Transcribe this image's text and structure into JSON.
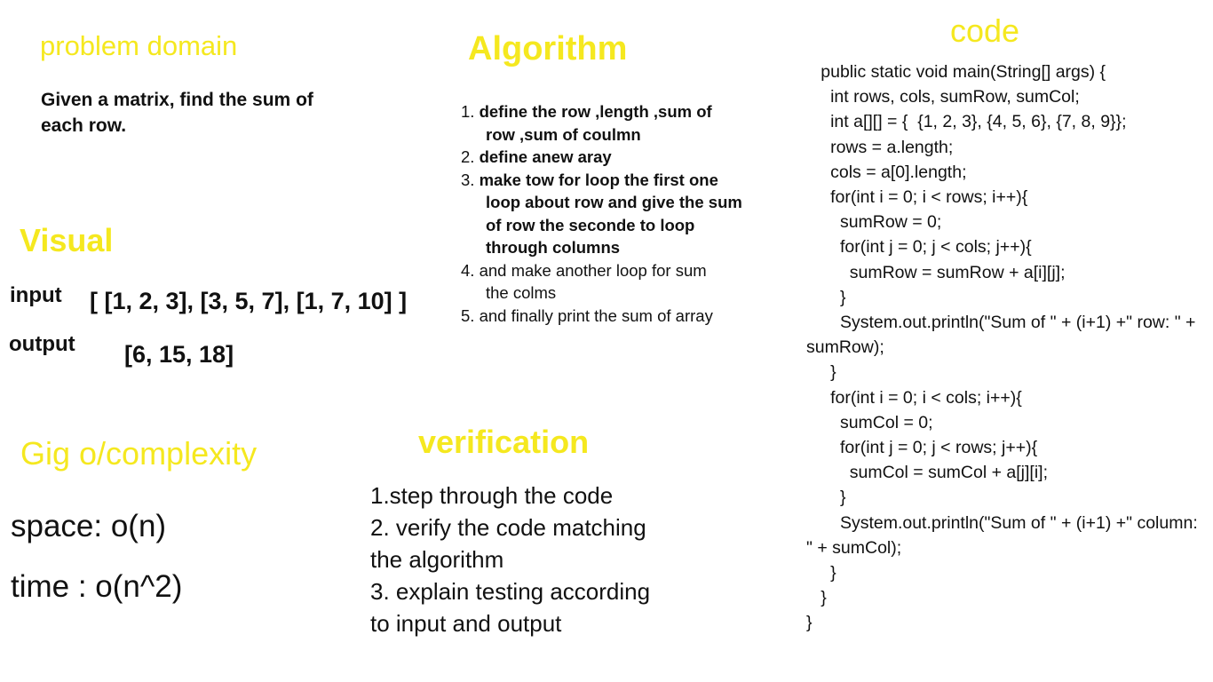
{
  "colors": {
    "accent_yellow": "#f5e81f",
    "text": "#111111",
    "background": "#ffffff"
  },
  "problem_domain": {
    "title": "problem domain",
    "text": "Given a matrix, find the sum of each row."
  },
  "algorithm": {
    "title": "Algorithm",
    "steps": [
      {
        "num": "1.",
        "text": "define the row ,length ,sum of row ,sum of coulmn",
        "line1": "define the row ,length ,sum of",
        "line2": "row ,sum of coulmn",
        "bold": true
      },
      {
        "num": "2.",
        "line1": "define anew aray",
        "bold": true
      },
      {
        "num": "3.",
        "line1": "make tow for loop the first one",
        "line2": "loop about row and give the sum",
        "line3": "of row the seconde to loop",
        "line4": "through columns",
        "bold": true
      },
      {
        "num": "4.",
        "line1": "and make another loop for sum",
        "line2": "the colms",
        "bold": false
      },
      {
        "num": "5.",
        "line1": "and finally print the sum of array",
        "bold": false
      }
    ]
  },
  "code": {
    "title": "code",
    "source": "   public static void main(String[] args) {\n     int rows, cols, sumRow, sumCol;\n     int a[][] = {  {1, 2, 3}, {4, 5, 6}, {7, 8, 9}};\n     rows = a.length;\n     cols = a[0].length;\n     for(int i = 0; i < rows; i++){\n       sumRow = 0;\n       for(int j = 0; j < cols; j++){\n         sumRow = sumRow + a[i][j];\n       }\n       System.out.println(\"Sum of \" + (i+1) +\" row: \" + sumRow);\n     }\n     for(int i = 0; i < cols; i++){\n       sumCol = 0;\n       for(int j = 0; j < rows; j++){\n         sumCol = sumCol + a[j][i];\n       }\n       System.out.println(\"Sum of \" + (i+1) +\" column: \" + sumCol);\n     }\n   }\n}"
  },
  "visual": {
    "title": "Visual",
    "input_label": "input",
    "input_value": "[ [1, 2, 3], [3, 5, 7], [1, 7, 10] ]",
    "output_label": "output",
    "output_value": "[6, 15, 18]"
  },
  "complexity": {
    "title": "Gig o/complexity",
    "space": "space: o(n)",
    "time": "time :  o(n^2)"
  },
  "verification": {
    "title": "verification",
    "lines": [
      "1.step through the code",
      "2. verify the code matching",
      "the algorithm",
      "3. explain  testing  according",
      "to input and output"
    ]
  }
}
